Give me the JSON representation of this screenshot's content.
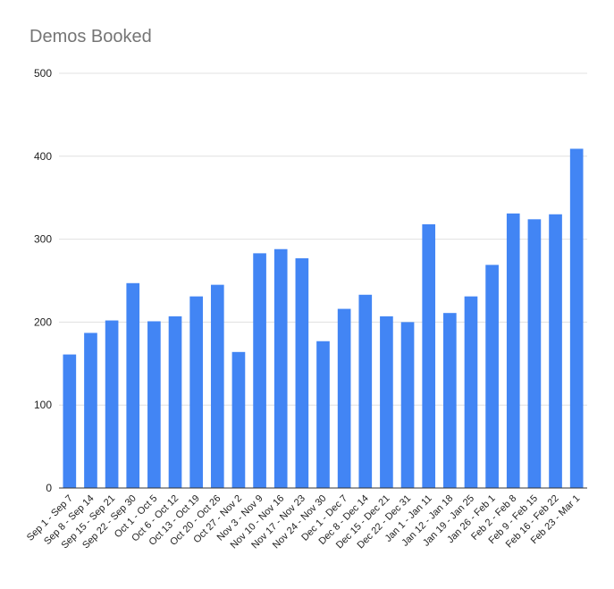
{
  "chart_data": {
    "type": "bar",
    "title": "Demos Booked",
    "xlabel": "",
    "ylabel": "",
    "ylim": [
      0,
      500
    ],
    "yticks": [
      "0",
      "100",
      "200",
      "300",
      "400",
      "500"
    ],
    "grid": true,
    "legend": "none",
    "bar_color": "#4285f4",
    "categories": [
      "Sep 1 - Sep 7",
      "Sep 8 - Sep 14",
      "Sep 15 - Sep 21",
      "Sep 22 - Sep 30",
      "Oct 1 - Oct 5",
      "Oct 6 - Oct 12",
      "Oct 13 - Oct 19",
      "Oct 20 - Oct 26",
      "Oct 27 - Nov 2",
      "Nov 3 - Nov 9",
      "Nov 10 - Nov 16",
      "Nov 17 - Nov 23",
      "Nov 24 - Nov 30",
      "Dec 1 - Dec 7",
      "Dec 8 - Dec 14",
      "Dec 15 - Dec 21",
      "Dec 22 - Dec 31",
      "Jan 1 - Jan 11",
      "Jan 12 - Jan 18",
      "Jan 19 - Jan 25",
      "Jan 26 - Feb 1",
      "Feb 2 - Feb 8",
      "Feb 9 - Feb 15",
      "Feb 16 - Feb 22",
      "Feb 23 - Mar 1"
    ],
    "values": [
      161,
      187,
      202,
      247,
      201,
      207,
      231,
      245,
      164,
      283,
      288,
      277,
      177,
      216,
      233,
      207,
      200,
      318,
      211,
      231,
      269,
      331,
      324,
      330,
      409
    ]
  }
}
